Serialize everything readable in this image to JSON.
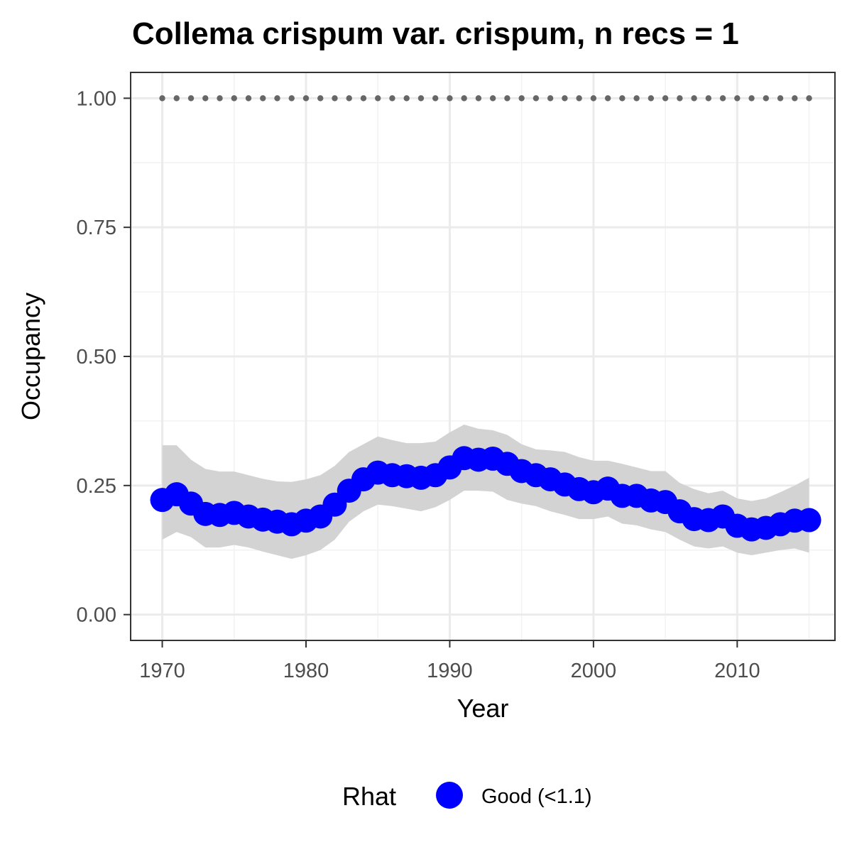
{
  "chart_data": {
    "type": "line",
    "title": "Collema crispum var. crispum, n recs = 1",
    "xlabel": "Year",
    "ylabel": "Occupancy",
    "xlim": [
      1967.8,
      2016.8
    ],
    "ylim": [
      -0.05,
      1.05
    ],
    "x_ticks": [
      1970,
      1980,
      1990,
      2000,
      2010
    ],
    "y_ticks": [
      "0.00",
      "0.25",
      "0.50",
      "0.75",
      "1.00"
    ],
    "y_tick_values": [
      0,
      0.25,
      0.5,
      0.75,
      1.0
    ],
    "grid": true,
    "x": [
      1970,
      1971,
      1972,
      1973,
      1974,
      1975,
      1976,
      1977,
      1978,
      1979,
      1980,
      1981,
      1982,
      1983,
      1984,
      1985,
      1986,
      1987,
      1988,
      1989,
      1990,
      1991,
      1992,
      1993,
      1994,
      1995,
      1996,
      1997,
      1998,
      1999,
      2000,
      2001,
      2002,
      2003,
      2004,
      2005,
      2006,
      2007,
      2008,
      2009,
      2010,
      2011,
      2012,
      2013,
      2014,
      2015
    ],
    "series": [
      {
        "name": "Good (<1.1)",
        "color": "#0000ff",
        "values": [
          0.222,
          0.233,
          0.215,
          0.195,
          0.193,
          0.197,
          0.19,
          0.184,
          0.18,
          0.175,
          0.182,
          0.19,
          0.213,
          0.24,
          0.262,
          0.275,
          0.27,
          0.268,
          0.265,
          0.27,
          0.285,
          0.303,
          0.3,
          0.302,
          0.292,
          0.278,
          0.27,
          0.262,
          0.252,
          0.243,
          0.237,
          0.244,
          0.23,
          0.23,
          0.221,
          0.218,
          0.2,
          0.185,
          0.183,
          0.19,
          0.172,
          0.165,
          0.168,
          0.175,
          0.182,
          0.183
        ],
        "lower": [
          0.145,
          0.16,
          0.15,
          0.13,
          0.13,
          0.135,
          0.13,
          0.122,
          0.115,
          0.108,
          0.115,
          0.125,
          0.145,
          0.18,
          0.2,
          0.213,
          0.21,
          0.205,
          0.2,
          0.208,
          0.222,
          0.24,
          0.24,
          0.238,
          0.222,
          0.215,
          0.21,
          0.2,
          0.193,
          0.185,
          0.185,
          0.19,
          0.176,
          0.173,
          0.165,
          0.16,
          0.145,
          0.132,
          0.128,
          0.132,
          0.12,
          0.115,
          0.12,
          0.125,
          0.128,
          0.12
        ],
        "upper": [
          0.328,
          0.328,
          0.3,
          0.282,
          0.277,
          0.277,
          0.27,
          0.263,
          0.258,
          0.257,
          0.262,
          0.27,
          0.288,
          0.315,
          0.33,
          0.345,
          0.338,
          0.332,
          0.332,
          0.335,
          0.353,
          0.368,
          0.36,
          0.357,
          0.348,
          0.33,
          0.32,
          0.318,
          0.315,
          0.305,
          0.298,
          0.298,
          0.292,
          0.285,
          0.278,
          0.278,
          0.255,
          0.243,
          0.235,
          0.24,
          0.225,
          0.22,
          0.225,
          0.237,
          0.25,
          0.265
        ]
      }
    ],
    "reference_line": {
      "y": 1.0,
      "style": "dotted",
      "color": "#666666"
    },
    "ribbon_color": "#d3d3d3",
    "legend": {
      "title": "Rhat",
      "position": "bottom",
      "entries": [
        {
          "label": "Good (<1.1)",
          "color": "#0000ff"
        }
      ]
    }
  }
}
